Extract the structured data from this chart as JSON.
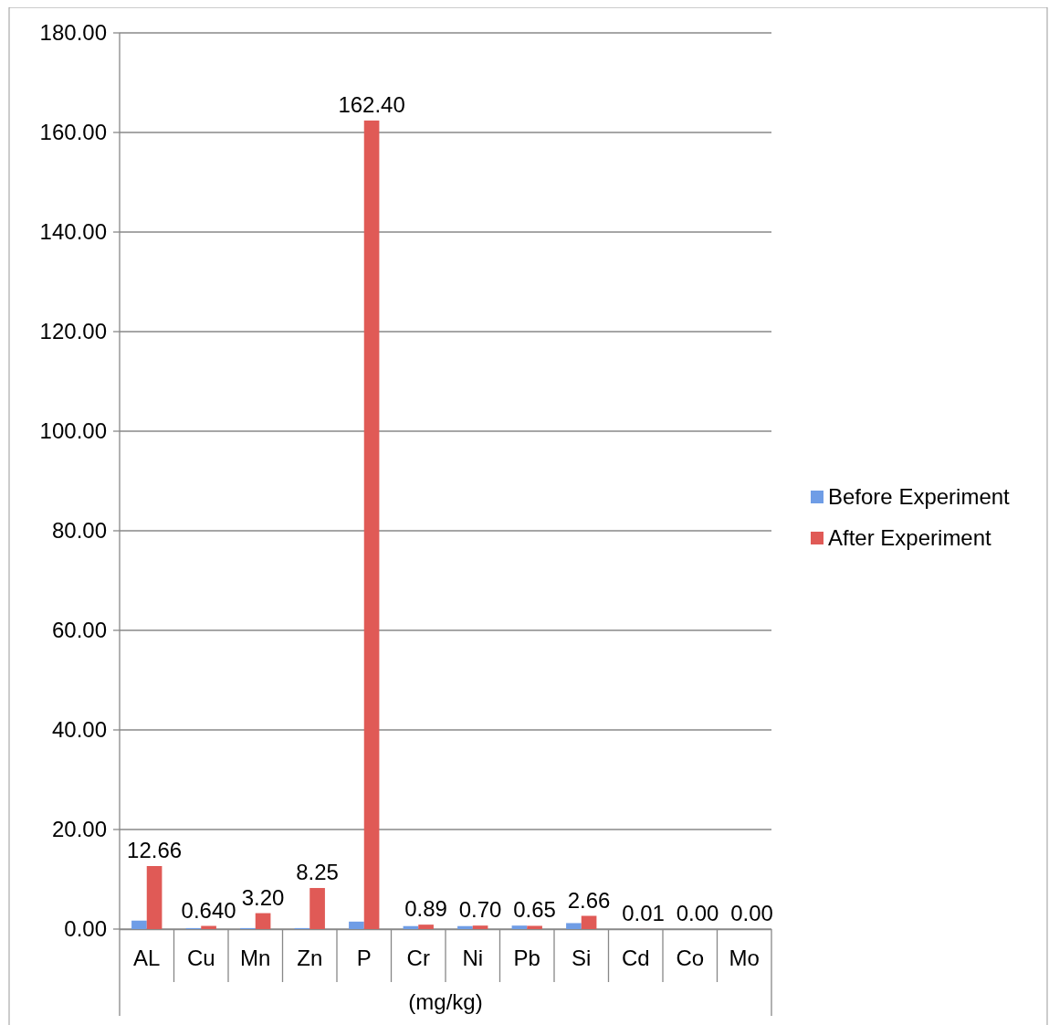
{
  "chart_data": {
    "type": "bar",
    "xlabel": "(mg/kg)",
    "categories": [
      "AL",
      "Cu",
      "Mn",
      "Zn",
      "P",
      "Cr",
      "Ni",
      "Pb",
      "Si",
      "Cd",
      "Co",
      "Mo"
    ],
    "series": [
      {
        "name": "Before Experiment",
        "color": "#6f9de6",
        "values": [
          1.7,
          0.2,
          0.2,
          0.2,
          1.5,
          0.6,
          0.6,
          0.7,
          1.2,
          0,
          0,
          0
        ]
      },
      {
        "name": "After Experiment",
        "color": "#e05a56",
        "values": [
          12.66,
          0.64,
          3.2,
          8.25,
          162.4,
          0.89,
          0.7,
          0.65,
          2.66,
          0.01,
          0,
          0
        ],
        "value_labels": [
          "12.66",
          "0.640",
          "3.20",
          "8.25",
          "162.40",
          "0.89",
          "0.70",
          "0.65",
          "2.66",
          "0.01",
          "0.00",
          "0.00"
        ]
      }
    ],
    "ylim": [
      0,
      180
    ],
    "yticks": [
      {
        "value": 0,
        "label": "0.00"
      },
      {
        "value": 20,
        "label": "20.00"
      },
      {
        "value": 40,
        "label": "40.00"
      },
      {
        "value": 60,
        "label": "60.00"
      },
      {
        "value": 80,
        "label": "80.00"
      },
      {
        "value": 100,
        "label": "100.00"
      },
      {
        "value": 120,
        "label": "120.00"
      },
      {
        "value": 140,
        "label": "140.00"
      },
      {
        "value": 160,
        "label": "160.00"
      },
      {
        "value": 180,
        "label": "180.00"
      }
    ],
    "grid": "y",
    "legend": "right"
  }
}
